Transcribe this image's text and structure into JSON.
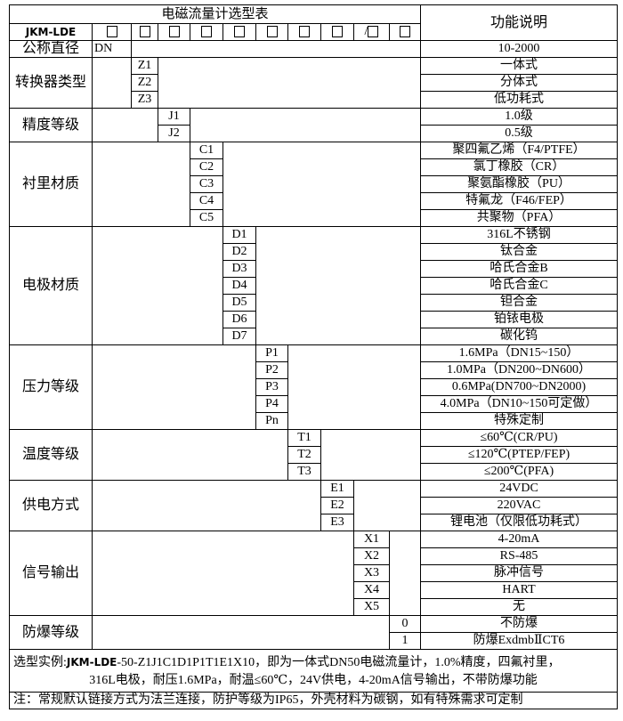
{
  "header": {
    "title": "电磁流量计选型表",
    "function_header": "功能说明",
    "model_prefix": "JKM-LDE",
    "slash": "/"
  },
  "groups": [
    {
      "label": "公称直径",
      "column": 1,
      "codes": [
        "DN"
      ],
      "functions": [
        "10-2000"
      ]
    },
    {
      "label": "转换器类型",
      "column": 2,
      "codes": [
        "Z1",
        "Z2",
        "Z3"
      ],
      "functions": [
        "一体式",
        "分体式",
        "低功耗式"
      ]
    },
    {
      "label": "精度等级",
      "column": 3,
      "codes": [
        "J1",
        "J2"
      ],
      "functions": [
        "1.0级",
        "0.5级"
      ]
    },
    {
      "label": "衬里材质",
      "column": 4,
      "codes": [
        "C1",
        "C2",
        "C3",
        "C4",
        "C5"
      ],
      "functions": [
        "聚四氟乙烯（F4/PTFE）",
        "氯丁橡胶（CR）",
        "聚氨酯橡胶（PU）",
        "特氟龙（F46/FEP）",
        "共聚物（PFA）"
      ]
    },
    {
      "label": "电极材质",
      "column": 5,
      "codes": [
        "D1",
        "D2",
        "D3",
        "D4",
        "D5",
        "D6",
        "D7"
      ],
      "functions": [
        "316L不锈钢",
        "钛合金",
        "哈氏合金B",
        "哈氏合金C",
        "钽合金",
        "铂铱电极",
        "碳化钨"
      ]
    },
    {
      "label": "压力等级",
      "column": 6,
      "codes": [
        "P1",
        "P2",
        "P3",
        "P4",
        "Pn"
      ],
      "functions": [
        "1.6MPa（DN15~150）",
        "1.0MPa（DN200~DN600）",
        "0.6MPa(DN700~DN2000)",
        "4.0MPa（DN10~150可定做）",
        "特殊定制"
      ]
    },
    {
      "label": "温度等级",
      "column": 7,
      "codes": [
        "T1",
        "T2",
        "T3"
      ],
      "functions": [
        "≤60℃(CR/PU)",
        "≤120℃(PTEP/FEP)",
        "≤200℃(PFA)"
      ]
    },
    {
      "label": "供电方式",
      "column": 8,
      "codes": [
        "E1",
        "E2",
        "E3"
      ],
      "functions": [
        "24VDC",
        "220VAC",
        "锂电池（仅限低功耗式）"
      ]
    },
    {
      "label": "信号输出",
      "column": 9,
      "codes": [
        "X1",
        "X2",
        "X3",
        "X4",
        "X5"
      ],
      "functions": [
        "4-20mA",
        "RS-485",
        "脉冲信号",
        "HART",
        "无"
      ]
    },
    {
      "label": "防爆等级",
      "column": 10,
      "codes": [
        "0",
        "1"
      ],
      "functions": [
        "不防爆",
        "防爆ExdmbⅡCT6"
      ]
    }
  ],
  "footer": {
    "example_label": "选型实例:",
    "example_model": "JKM-LDE",
    "example_line1": "-50-Z1J1C1D1P1T1E1X10，即为一体式DN50电磁流量计，1.0%精度，四氟衬里，",
    "example_line2": "316L电极，耐压1.6MPa，耐温≤60℃，24V供电，4-20mA信号输出，不带防爆功能",
    "note": "注：常规默认链接方式为法兰连接，防护等级为IP65，外壳材料为碳钢，如有特殊需求可定制"
  }
}
